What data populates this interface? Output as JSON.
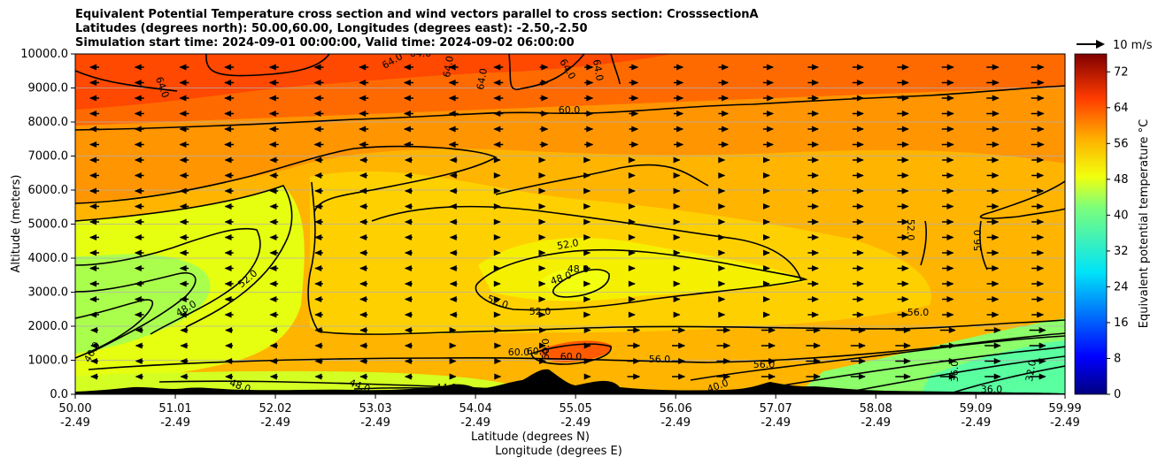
{
  "titles": [
    "Equivalent Potential Temperature cross section and wind vectors parallel to cross section: CrosssectionA",
    "Latitudes (degrees north): 50.00,60.00, Longitudes (degrees east): -2.50,-2.50",
    "Simulation start time: 2024-09-01 00:00:00, Valid time: 2024-09-02 06:00:00"
  ],
  "chart_data": {
    "type": "heatmap",
    "title": "Equivalent Potential Temperature cross section and wind vectors parallel to cross section: CrosssectionA",
    "ylabel": "Altitude (meters)",
    "xlabel": "Latitude (degrees N)",
    "xlabel2": "Longitude (degrees E)",
    "ylim": [
      0,
      10000
    ],
    "xlim": [
      50.0,
      59.99
    ],
    "yticks": [
      "0.0",
      "1000.0",
      "2000.0",
      "3000.0",
      "4000.0",
      "5000.0",
      "6000.0",
      "7000.0",
      "8000.0",
      "9000.0",
      "10000.0"
    ],
    "xticks": [
      {
        "lat": "50.00",
        "lon": "-2.49"
      },
      {
        "lat": "51.01",
        "lon": "-2.49"
      },
      {
        "lat": "52.02",
        "lon": "-2.49"
      },
      {
        "lat": "53.03",
        "lon": "-2.49"
      },
      {
        "lat": "54.04",
        "lon": "-2.49"
      },
      {
        "lat": "55.05",
        "lon": "-2.49"
      },
      {
        "lat": "56.06",
        "lon": "-2.49"
      },
      {
        "lat": "57.07",
        "lon": "-2.49"
      },
      {
        "lat": "58.08",
        "lon": "-2.49"
      },
      {
        "lat": "59.09",
        "lon": "-2.49"
      },
      {
        "lat": "59.99",
        "lon": "-2.49"
      }
    ],
    "grid": "horizontal",
    "colorbar": {
      "label": "Equivalent potential temperature °C",
      "ticks": [
        "0",
        "8",
        "16",
        "24",
        "32",
        "40",
        "48",
        "56",
        "64",
        "72"
      ],
      "range": [
        0,
        76
      ]
    },
    "quiver_key": "10 m/s",
    "contour_labels": [
      "64.0",
      "64.0",
      "64.0",
      "64.0",
      "64.0",
      "64.0",
      "64.0",
      "60.0",
      "52.0",
      "48.0",
      "40.0",
      "52.0",
      "52.0",
      "48.0",
      "48.0",
      "52.0",
      "52.0",
      "56.0",
      "56.0",
      "56.0",
      "60.0",
      "60.0",
      "60.0",
      "60.0",
      "56.0",
      "48.0",
      "44.0",
      "44.0",
      "40.0",
      "36.0",
      "36.0",
      "32.0"
    ]
  }
}
